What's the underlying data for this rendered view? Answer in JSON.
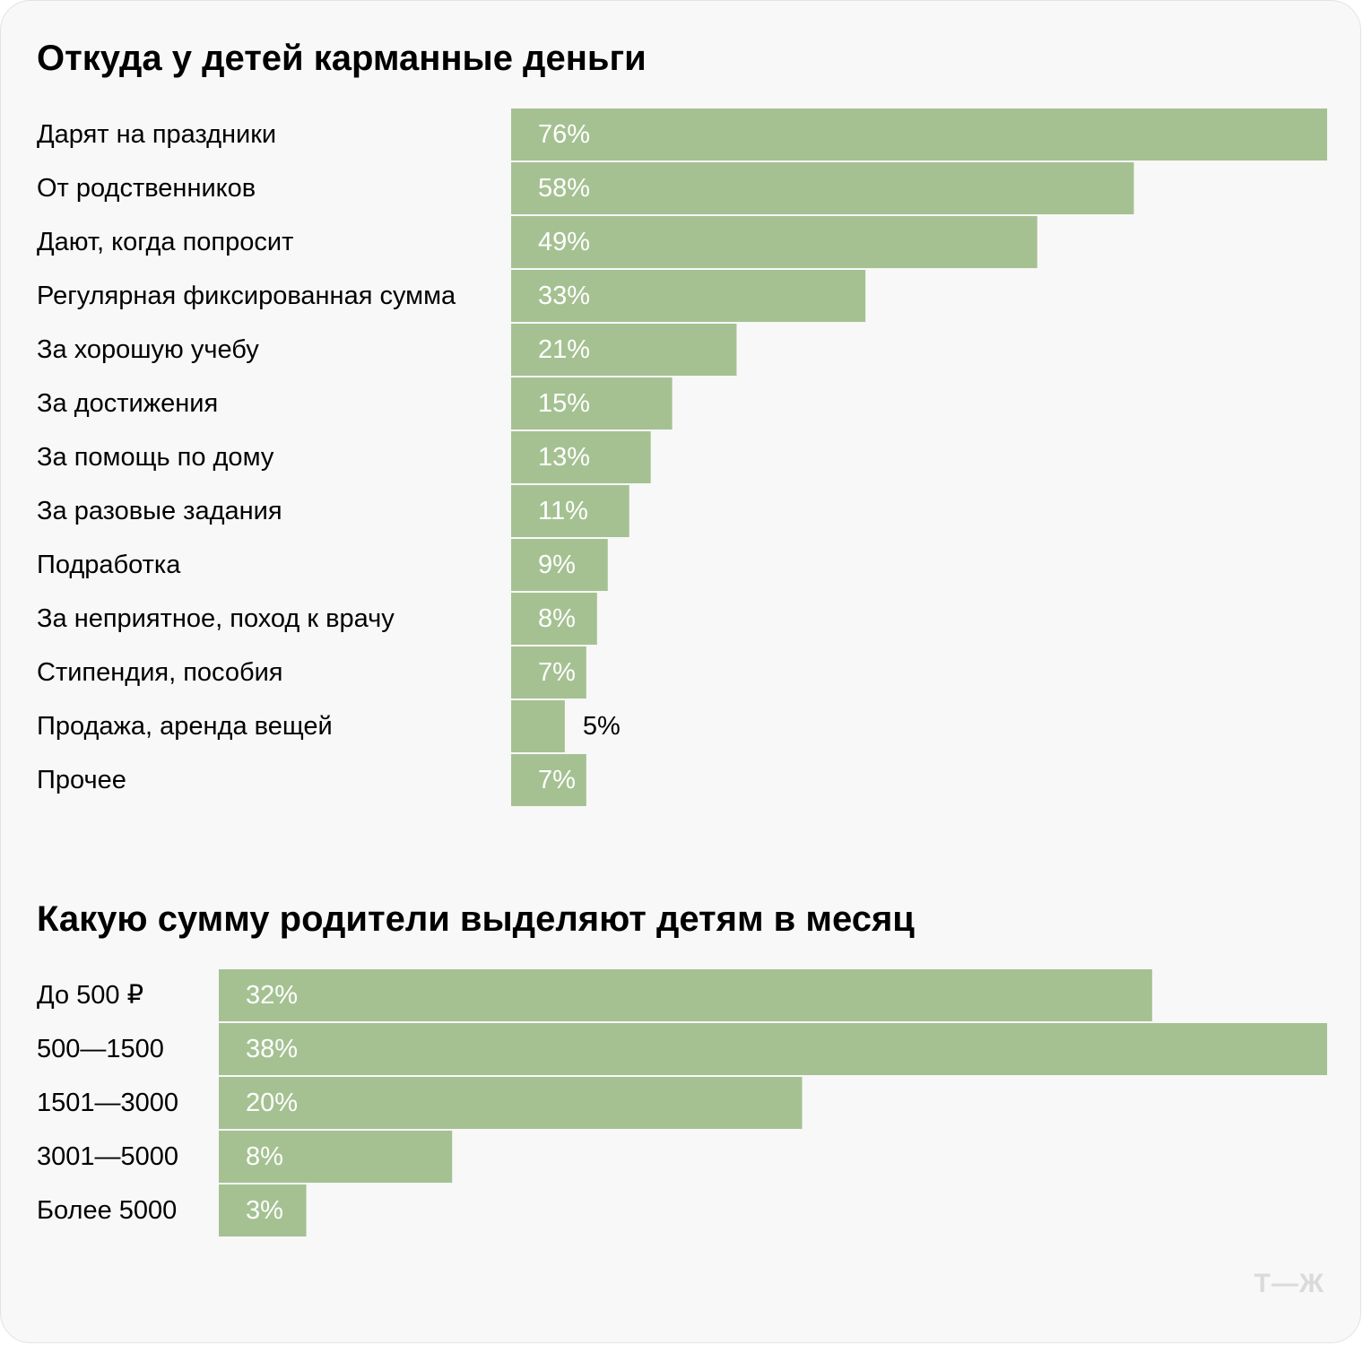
{
  "chart_data": [
    {
      "type": "bar",
      "orientation": "horizontal",
      "title": "Откуда у детей карманные деньги",
      "categories": [
        "Дарят на праздники",
        "От родственников",
        "Дают, когда попросит",
        "Регулярная фиксированная сумма",
        "За хорошую учебу",
        "За достижения",
        "За помощь по дому",
        "За разовые задания",
        "Подработка",
        "За неприятное, поход к врачу",
        "Стипендия, пособия",
        "Продажа, аренда вещей",
        "Прочее"
      ],
      "values": [
        76,
        58,
        49,
        33,
        21,
        15,
        13,
        11,
        9,
        8,
        7,
        5,
        7
      ],
      "labels": [
        "76%",
        "58%",
        "49%",
        "33%",
        "21%",
        "15%",
        "13%",
        "11%",
        "9%",
        "8%",
        "7%",
        "5%",
        "7%"
      ],
      "unit": "%",
      "xlim": [
        0,
        76
      ],
      "bar_color": "#a5c192"
    },
    {
      "type": "bar",
      "orientation": "horizontal",
      "title": "Какую сумму родители выделяют детям в месяц",
      "categories": [
        "До 500 ₽",
        "500—1500",
        "1501—3000",
        "3001—5000",
        "Более 5000"
      ],
      "values": [
        32,
        38,
        20,
        8,
        3
      ],
      "labels": [
        "32%",
        "38%",
        "20%",
        "8%",
        "3%"
      ],
      "unit": "%",
      "xlim": [
        0,
        38
      ],
      "bar_color": "#a5c192"
    }
  ],
  "logo": {
    "text": "Т—Ж"
  }
}
